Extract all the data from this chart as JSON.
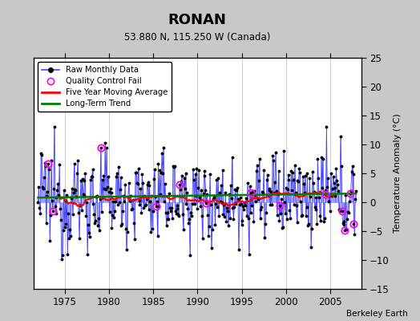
{
  "title": "RONAN",
  "subtitle": "53.880 N, 115.250 W (Canada)",
  "ylabel": "Temperature Anomaly (°C)",
  "credit": "Berkeley Earth",
  "xlim": [
    1971.5,
    2008.5
  ],
  "ylim": [
    -15,
    25
  ],
  "yticks": [
    -15,
    -10,
    -5,
    0,
    5,
    10,
    15,
    20,
    25
  ],
  "xticks": [
    1975,
    1980,
    1985,
    1990,
    1995,
    2000,
    2005
  ],
  "outer_bg": "#c8c8c8",
  "plot_bg": "#ffffff",
  "grid_color": "#cccccc",
  "raw_line_color": "#4444ff",
  "raw_dot_color": "black",
  "qc_color": "magenta",
  "moving_avg_color": "red",
  "trend_color": "green",
  "seed": 12345,
  "n_months": 432,
  "start_year": 1972.0
}
